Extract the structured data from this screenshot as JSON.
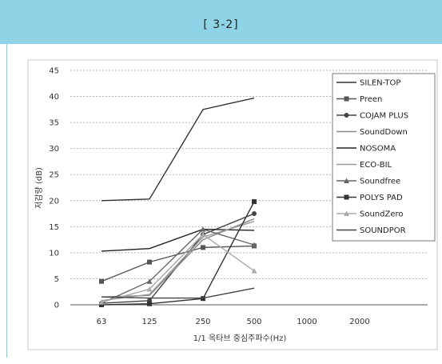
{
  "header": {
    "title": "[      3-2]"
  },
  "chart_data": {
    "type": "line",
    "xlabel": "1/1 옥타브 중심주파수(Hz)",
    "ylabel": "저감량 (dB)",
    "categories": [
      "63",
      "125",
      "250",
      "500",
      "1000",
      "2000"
    ],
    "ylim": [
      0,
      45
    ],
    "yticks": [
      0,
      5,
      10,
      15,
      20,
      25,
      30,
      35,
      40,
      45
    ],
    "grid": true,
    "legend_position": "right",
    "series": [
      {
        "name": "SILEN-TOP",
        "values": [
          20,
          20.3,
          37.5,
          39.7,
          null,
          null
        ],
        "color": "#333333",
        "marker": "none"
      },
      {
        "name": "Preen",
        "values": [
          4.5,
          8.2,
          11.0,
          11.3,
          null,
          null
        ],
        "color": "#555555",
        "marker": "square"
      },
      {
        "name": "COJAM PLUS",
        "values": [
          0.3,
          0.8,
          13.5,
          17.5,
          null,
          null
        ],
        "color": "#444444",
        "marker": "circle"
      },
      {
        "name": "SoundDown",
        "values": [
          1.5,
          1.8,
          12.5,
          16.5,
          null,
          null
        ],
        "color": "#888888",
        "marker": "none"
      },
      {
        "name": "NOSOMA",
        "values": [
          10.3,
          10.8,
          14.5,
          14.3,
          null,
          null
        ],
        "color": "#222222",
        "marker": "none"
      },
      {
        "name": "ECO-BIL",
        "values": [
          0.8,
          2.0,
          13.0,
          16.0,
          null,
          null
        ],
        "color": "#999999",
        "marker": "none"
      },
      {
        "name": "Soundfree",
        "values": [
          0.3,
          4.5,
          14.5,
          11.5,
          null,
          null
        ],
        "color": "#666666",
        "marker": "triangle"
      },
      {
        "name": "POLYS PAD",
        "values": [
          0.0,
          0.2,
          1.2,
          19.8,
          null,
          null
        ],
        "color": "#333333",
        "marker": "square"
      },
      {
        "name": "SoundZero",
        "values": [
          0.5,
          3.0,
          13.5,
          6.5,
          null,
          null
        ],
        "color": "#aaaaaa",
        "marker": "triangle"
      },
      {
        "name": "SOUNDPOR",
        "values": [
          1.5,
          1.3,
          1.3,
          3.2,
          null,
          null
        ],
        "color": "#444444",
        "marker": "none"
      }
    ]
  }
}
